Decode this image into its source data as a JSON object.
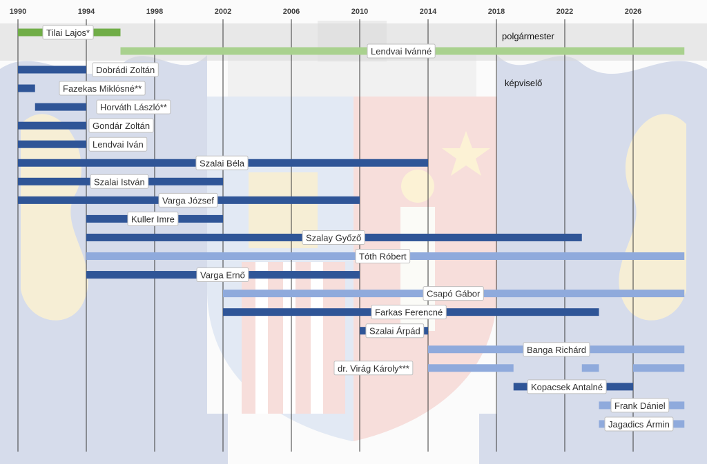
{
  "chart_data": {
    "type": "bar",
    "orientation": "horizontal-timeline",
    "title": "",
    "xlabel": "",
    "ylabel": "",
    "x_ticks": [
      1990,
      1994,
      1998,
      2002,
      2006,
      2010,
      2014,
      2018,
      2022,
      2026
    ],
    "xlim": [
      1990,
      2029
    ],
    "grid": true,
    "sections": {
      "mayor_label": "polgármester",
      "council_label": "képviselő"
    },
    "colors": {
      "green": "#70ad47",
      "light_green": "#a9d18e",
      "dark_blue": "#2f5597",
      "light_blue": "#8faadc",
      "mid_blue": "#7ea0d4",
      "grid": "#3a3a3a",
      "mayor_band": "#d9d9d9"
    },
    "series": [
      {
        "name": "Tilai Lajos*",
        "section": "mayor",
        "color": "green",
        "segments": [
          [
            1990,
            1996
          ]
        ]
      },
      {
        "name": "Lendvai Ivánné",
        "section": "mayor",
        "color": "light_green",
        "segments": [
          [
            1996,
            2029
          ]
        ]
      },
      {
        "name": "Dobrádi Zoltán",
        "section": "council",
        "color": "dark_blue",
        "segments": [
          [
            1990,
            1994
          ]
        ]
      },
      {
        "name": "Fazekas Miklósné**",
        "section": "council",
        "color": "dark_blue",
        "segments": [
          [
            1990,
            1991
          ]
        ]
      },
      {
        "name": "Horváth László**",
        "section": "council",
        "color": "dark_blue",
        "segments": [
          [
            1991,
            1994
          ]
        ]
      },
      {
        "name": "Gondár Zoltán",
        "section": "council",
        "color": "dark_blue",
        "segments": [
          [
            1990,
            1994
          ]
        ]
      },
      {
        "name": "Lendvai Iván",
        "section": "council",
        "color": "dark_blue",
        "segments": [
          [
            1990,
            1994
          ]
        ]
      },
      {
        "name": "Szalai Béla",
        "section": "council",
        "color": "dark_blue",
        "segments": [
          [
            1990,
            2014
          ]
        ]
      },
      {
        "name": "Szalai István",
        "section": "council",
        "color": "dark_blue",
        "segments": [
          [
            1990,
            2002
          ]
        ]
      },
      {
        "name": "Varga József",
        "section": "council",
        "color": "dark_blue",
        "segments": [
          [
            1990,
            2010
          ]
        ]
      },
      {
        "name": "Kuller Imre",
        "section": "council",
        "color": "dark_blue",
        "segments": [
          [
            1994,
            2002
          ]
        ]
      },
      {
        "name": "Szalay Győző",
        "section": "council",
        "color": "dark_blue",
        "segments": [
          [
            1994,
            2023
          ]
        ]
      },
      {
        "name": "Tóth Róbert",
        "section": "council",
        "color": "light_blue",
        "segments": [
          [
            1994,
            2029
          ]
        ]
      },
      {
        "name": "Varga Ernő",
        "section": "council",
        "color": "dark_blue",
        "segments": [
          [
            1994,
            2010
          ]
        ]
      },
      {
        "name": "Csapó Gábor",
        "section": "council",
        "color": "light_blue",
        "segments": [
          [
            2002,
            2029
          ]
        ]
      },
      {
        "name": "Farkas Ferencné",
        "section": "council",
        "color": "dark_blue",
        "segments": [
          [
            2002,
            2024
          ]
        ]
      },
      {
        "name": "Szalai Árpád",
        "section": "council",
        "color": "dark_blue",
        "segments": [
          [
            2010,
            2014
          ]
        ]
      },
      {
        "name": "Banga Richárd",
        "section": "council",
        "color": "light_blue",
        "segments": [
          [
            2014,
            2029
          ]
        ]
      },
      {
        "name": "dr. Virág Károly***",
        "section": "council",
        "color": "light_blue",
        "segments": [
          [
            2014,
            2019
          ],
          [
            2023,
            2024
          ],
          [
            2026,
            2029
          ]
        ]
      },
      {
        "name": "Kopacsek Antalné",
        "section": "council",
        "color": "dark_blue",
        "segments": [
          [
            2019,
            2026
          ]
        ]
      },
      {
        "name": "Frank Dániel",
        "section": "council",
        "color": "light_blue",
        "segments": [
          [
            2024,
            2029
          ]
        ]
      },
      {
        "name": "Jagadics Ármin",
        "section": "council",
        "color": "light_blue",
        "segments": [
          [
            2024,
            2029
          ]
        ]
      }
    ]
  }
}
